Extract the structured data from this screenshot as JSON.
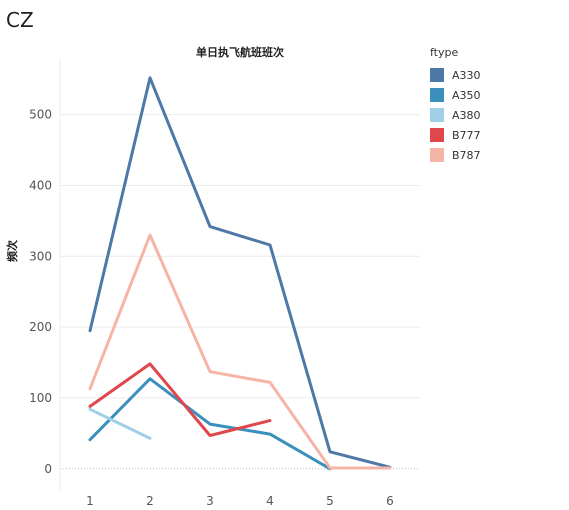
{
  "page": {
    "title": "CZ"
  },
  "chart_data": {
    "type": "line",
    "title": "单日执飞航班班次",
    "xlabel": "",
    "ylabel": "频次",
    "x": [
      1,
      2,
      3,
      4,
      5,
      6
    ],
    "xlim": [
      0.5,
      6.5
    ],
    "ylim": [
      -30,
      580
    ],
    "yticks": [
      0,
      100,
      200,
      300,
      400,
      500
    ],
    "grid": true,
    "legend_title": "ftype",
    "legend_position": "top-right",
    "series": [
      {
        "name": "A330",
        "color": "#4e79a7",
        "values": [
          195,
          552,
          342,
          316,
          24,
          2
        ]
      },
      {
        "name": "A350",
        "color": "#3a8fbd",
        "values": [
          41,
          127,
          63,
          49,
          0,
          null
        ]
      },
      {
        "name": "A380",
        "color": "#9fd0e8",
        "values": [
          84,
          43,
          null,
          null,
          null,
          null
        ]
      },
      {
        "name": "B777",
        "color": "#e0474c",
        "values": [
          88,
          148,
          47,
          68,
          null,
          null
        ]
      },
      {
        "name": "B787",
        "color": "#f4b5a6",
        "values": [
          113,
          330,
          137,
          122,
          1,
          1
        ]
      }
    ]
  }
}
